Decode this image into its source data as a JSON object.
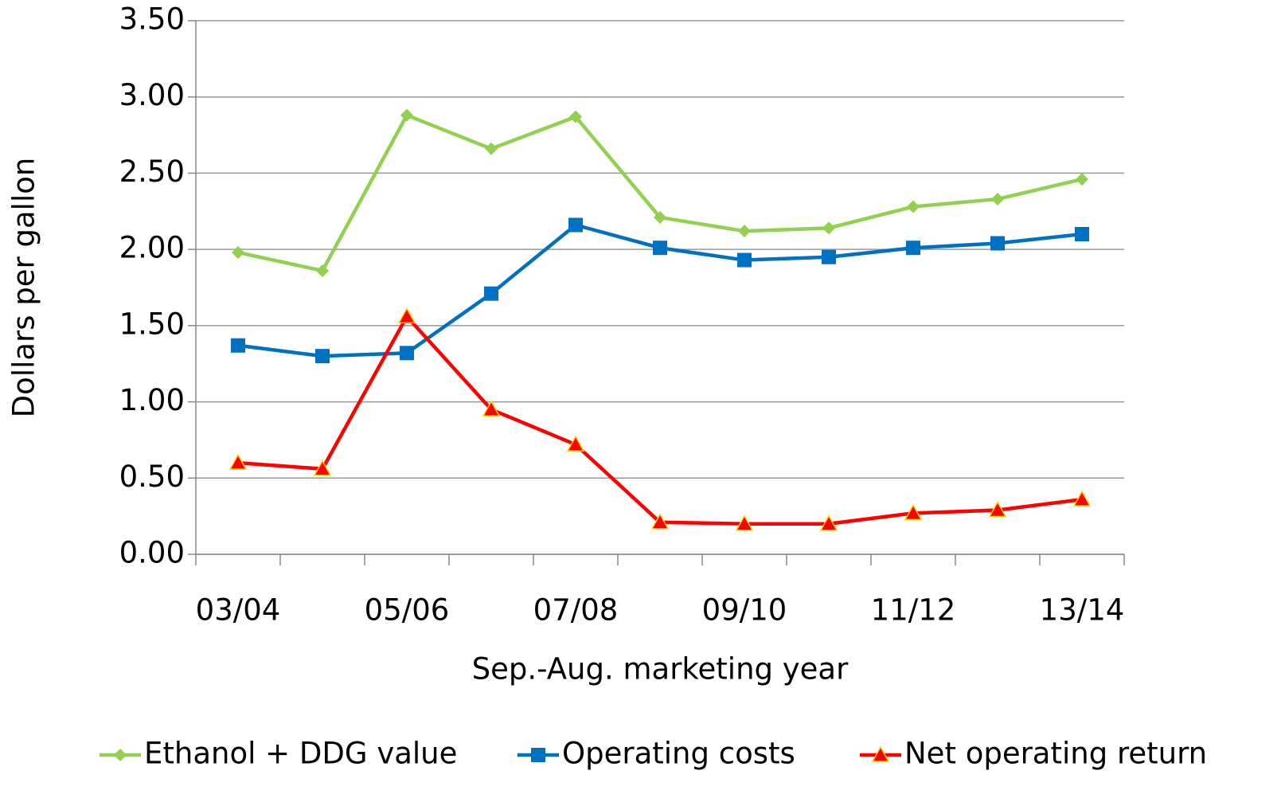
{
  "chart_data": {
    "type": "line",
    "x_label": "Sep.-Aug. marketing year",
    "y_label": "Dollars per gallon",
    "categories": [
      "03/04",
      null,
      "05/06",
      null,
      "07/08",
      null,
      "09/10",
      null,
      "11/12",
      null,
      "13/14"
    ],
    "series": [
      {
        "name": "Ethanol + DDG value",
        "color": "#92d050",
        "marker": "diamond",
        "values": [
          1.98,
          1.86,
          2.88,
          2.66,
          2.87,
          2.21,
          2.12,
          2.14,
          2.28,
          2.33,
          2.46
        ]
      },
      {
        "name": "Operating costs",
        "color": "#0070c0",
        "marker": "square",
        "values": [
          1.37,
          1.3,
          1.32,
          1.71,
          2.16,
          2.01,
          1.93,
          1.95,
          2.01,
          2.04,
          2.1
        ]
      },
      {
        "name": "Net operating return",
        "color": "#ff0000",
        "marker": "triangle",
        "values": [
          0.6,
          0.56,
          1.56,
          0.95,
          0.72,
          0.21,
          0.2,
          0.2,
          0.27,
          0.29,
          0.36
        ]
      }
    ],
    "ylim": [
      0,
      3.5
    ],
    "yticks": [
      {
        "value": 0,
        "label": "0.00"
      },
      {
        "value": 0.5,
        "label": "0.50"
      },
      {
        "value": 1,
        "label": "1.00"
      },
      {
        "value": 1.5,
        "label": "1.50"
      },
      {
        "value": 2,
        "label": "2.00"
      },
      {
        "value": 2.5,
        "label": "2.50"
      },
      {
        "value": 3,
        "label": "3.00"
      },
      {
        "value": 3.5,
        "label": "3.50"
      }
    ],
    "grid": true,
    "legend": "bottom"
  }
}
